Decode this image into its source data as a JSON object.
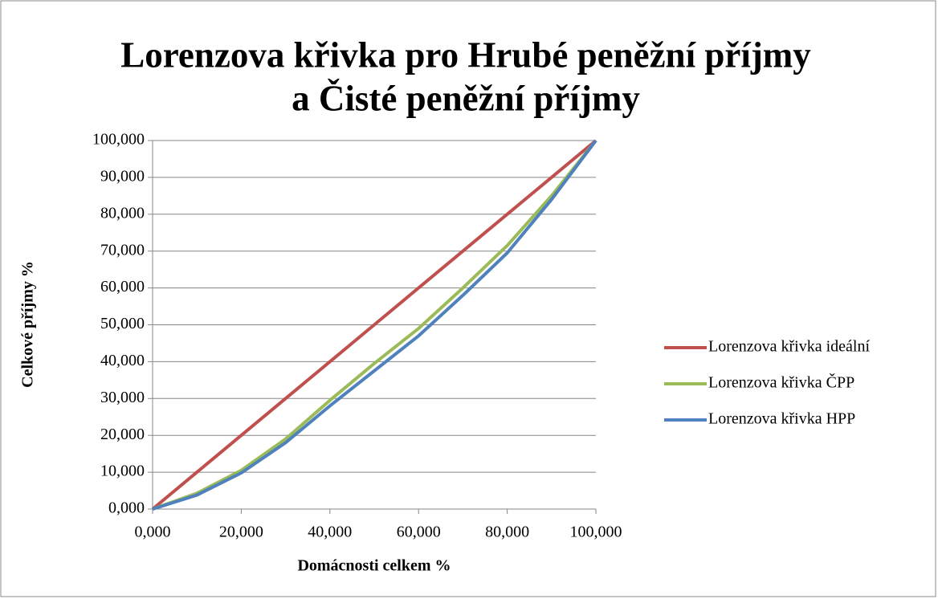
{
  "chart_data": {
    "type": "line",
    "title": [
      "Lorenzova křivka pro Hrubé peněžní příjmy",
      "a Čisté peněžní příjmy"
    ],
    "x_label": "Domácnosti celkem %",
    "y_label": "Celkové příjmy %",
    "x": [
      0,
      10,
      20,
      30,
      40,
      50,
      60,
      70,
      80,
      90,
      100
    ],
    "series": [
      {
        "name": "Lorenzova křivka ideální",
        "color": "#c0504d",
        "values": [
          0,
          10,
          20,
          30,
          40,
          50,
          60,
          70,
          80,
          90,
          100
        ]
      },
      {
        "name": "Lorenzova křivka ČPP",
        "color": "#9bbb59",
        "values": [
          0,
          4.3,
          10.5,
          19,
          29.5,
          39.5,
          49,
          60,
          71.5,
          85,
          100
        ]
      },
      {
        "name": "Lorenzova křivka HPP",
        "color": "#4f81bd",
        "values": [
          0,
          3.8,
          9.8,
          18,
          28,
          37.5,
          47,
          58,
          69.5,
          84,
          100
        ]
      }
    ],
    "xlim": [
      0,
      100
    ],
    "ylim": [
      0,
      100
    ],
    "xticks": [
      {
        "value": 0,
        "label": "0,000"
      },
      {
        "value": 20,
        "label": "20,000"
      },
      {
        "value": 40,
        "label": "40,000"
      },
      {
        "value": 60,
        "label": "60,000"
      },
      {
        "value": 80,
        "label": "80,000"
      },
      {
        "value": 100,
        "label": "100,000"
      }
    ],
    "yticks": [
      {
        "value": 0,
        "label": "0,000"
      },
      {
        "value": 10,
        "label": "10,000"
      },
      {
        "value": 20,
        "label": "20,000"
      },
      {
        "value": 30,
        "label": "30,000"
      },
      {
        "value": 40,
        "label": "40,000"
      },
      {
        "value": 50,
        "label": "50,000"
      },
      {
        "value": 60,
        "label": "60,000"
      },
      {
        "value": 70,
        "label": "70,000"
      },
      {
        "value": 80,
        "label": "80,000"
      },
      {
        "value": 90,
        "label": "90,000"
      },
      {
        "value": 100,
        "label": "100,000"
      }
    ],
    "grid": true,
    "legend": "right"
  }
}
